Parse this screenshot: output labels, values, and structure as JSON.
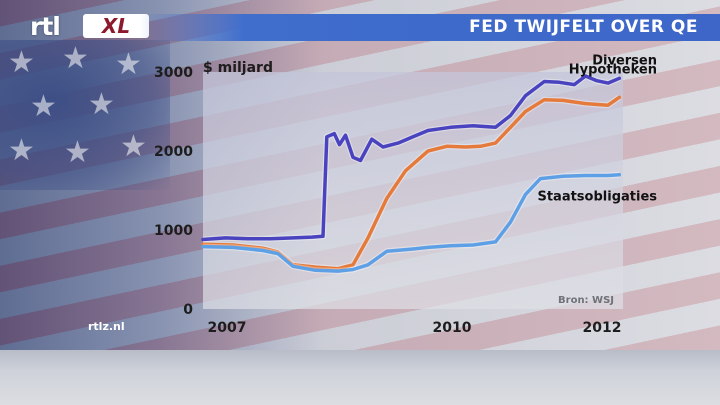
{
  "brand": {
    "logo_text": "rtl",
    "logo_badge": "XL"
  },
  "header": {
    "title": "FED TWIJFELT OVER QE"
  },
  "site": {
    "label": "rtlz.nl"
  },
  "colors": {
    "header_bar": "#3f6ecd",
    "diversen": "#4a43c0",
    "hypotheken": "#e57a3a",
    "staatsobligaties": "#5ea0e6"
  },
  "chart_data": {
    "type": "line",
    "ylabel": "$ miljard",
    "ylim": [
      0,
      3000
    ],
    "yticks": [
      0,
      1000,
      2000,
      3000
    ],
    "xlim": [
      2007.0,
      2012.6
    ],
    "xticks": [
      {
        "value": 2007,
        "label": "2007"
      },
      {
        "value": 2010,
        "label": "2010"
      },
      {
        "value": 2012,
        "label": "2012"
      }
    ],
    "source": "Bron: WSJ",
    "series": [
      {
        "name": "Diversen",
        "x": [
          2007.0,
          2007.3,
          2007.6,
          2007.9,
          2008.2,
          2008.45,
          2008.6,
          2008.65,
          2008.75,
          2008.82,
          2008.9,
          2009.0,
          2009.1,
          2009.25,
          2009.4,
          2009.6,
          2009.8,
          2010.0,
          2010.3,
          2010.6,
          2010.9,
          2011.1,
          2011.3,
          2011.55,
          2011.75,
          2011.95,
          2012.1,
          2012.25,
          2012.4,
          2012.55
        ],
        "values": [
          880,
          900,
          890,
          890,
          900,
          910,
          920,
          2180,
          2220,
          2080,
          2200,
          1920,
          1880,
          2150,
          2050,
          2100,
          2180,
          2260,
          2300,
          2320,
          2300,
          2450,
          2700,
          2880,
          2870,
          2840,
          2950,
          2890,
          2860,
          2920
        ]
      },
      {
        "name": "Hypotheken",
        "x": [
          2007.0,
          2007.4,
          2007.8,
          2008.0,
          2008.2,
          2008.5,
          2008.8,
          2009.0,
          2009.2,
          2009.45,
          2009.7,
          2010.0,
          2010.25,
          2010.5,
          2010.7,
          2010.9,
          2011.1,
          2011.3,
          2011.55,
          2011.8,
          2012.1,
          2012.4,
          2012.55
        ],
        "values": [
          820,
          810,
          770,
          720,
          560,
          530,
          510,
          560,
          900,
          1400,
          1750,
          2000,
          2060,
          2050,
          2060,
          2100,
          2300,
          2500,
          2650,
          2640,
          2600,
          2580,
          2680
        ]
      },
      {
        "name": "Staatsobligaties",
        "x": [
          2007.0,
          2007.4,
          2007.8,
          2008.0,
          2008.2,
          2008.5,
          2008.8,
          2009.0,
          2009.2,
          2009.45,
          2009.8,
          2010.0,
          2010.3,
          2010.6,
          2010.9,
          2011.1,
          2011.3,
          2011.5,
          2011.8,
          2012.1,
          2012.4,
          2012.55
        ],
        "values": [
          790,
          780,
          740,
          700,
          540,
          490,
          480,
          500,
          560,
          730,
          760,
          780,
          800,
          810,
          850,
          1100,
          1450,
          1650,
          1680,
          1690,
          1690,
          1700
        ]
      }
    ]
  }
}
